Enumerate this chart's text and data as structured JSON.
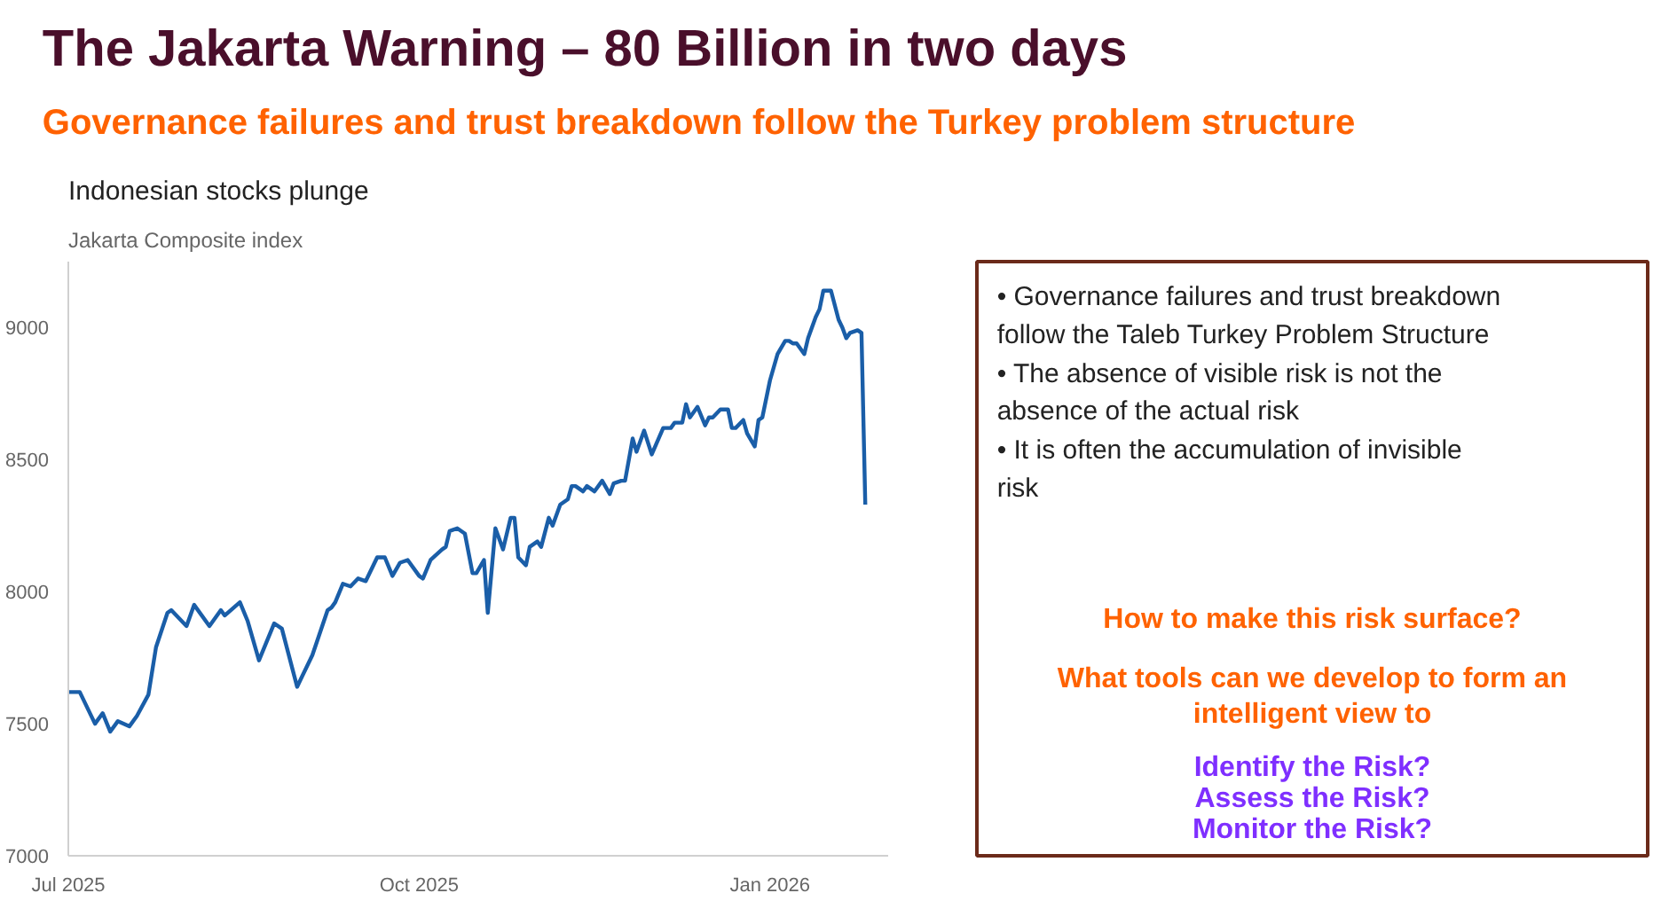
{
  "chart_data": [
    {
      "type": "other",
      "title": "The Jakarta Warning – 80 Billion in two days",
      "subtitle": "Governance failures and trust breakdown follow the Turkey problem structure"
    },
    {
      "type": "line",
      "title": "Indonesian stocks plunge",
      "subtitle": "Jakarta Composite index",
      "x": [
        "2025-07-01",
        "2025-07-04",
        "2025-07-08",
        "2025-07-10",
        "2025-07-12",
        "2025-07-14",
        "2025-07-17",
        "2025-07-19",
        "2025-07-22",
        "2025-07-24",
        "2025-07-27",
        "2025-07-28",
        "2025-08-01",
        "2025-08-03",
        "2025-08-07",
        "2025-08-10",
        "2025-08-11",
        "2025-08-15",
        "2025-08-17",
        "2025-08-20",
        "2025-08-24",
        "2025-08-26",
        "2025-08-30",
        "2025-09-03",
        "2025-09-07",
        "2025-09-08",
        "2025-09-09",
        "2025-09-11",
        "2025-09-13",
        "2025-09-15",
        "2025-09-17",
        "2025-09-20",
        "2025-09-22",
        "2025-09-24",
        "2025-09-26",
        "2025-09-28",
        "2025-10-01",
        "2025-10-02",
        "2025-10-04",
        "2025-10-07",
        "2025-10-08",
        "2025-10-09",
        "2025-10-11",
        "2025-10-13",
        "2025-10-15",
        "2025-10-16",
        "2025-10-18",
        "2025-10-19",
        "2025-10-21",
        "2025-10-23",
        "2025-10-25",
        "2025-10-26",
        "2025-10-27",
        "2025-10-29",
        "2025-10-30",
        "2025-11-01",
        "2025-11-02",
        "2025-11-04",
        "2025-11-05",
        "2025-11-07",
        "2025-11-09",
        "2025-11-10",
        "2025-11-11",
        "2025-11-13",
        "2025-11-14",
        "2025-11-16",
        "2025-11-18",
        "2025-11-20",
        "2025-11-21",
        "2025-11-23",
        "2025-11-24",
        "2025-11-26",
        "2025-11-27",
        "2025-11-29",
        "2025-12-01",
        "2025-12-04",
        "2025-12-06",
        "2025-12-07",
        "2025-12-09",
        "2025-12-10",
        "2025-12-11",
        "2025-12-13",
        "2025-12-15",
        "2025-12-16",
        "2025-12-17",
        "2025-12-19",
        "2025-12-21",
        "2025-12-22",
        "2025-12-23",
        "2025-12-25",
        "2025-12-26",
        "2025-12-28",
        "2025-12-29",
        "2025-12-30",
        "2026-01-01",
        "2026-01-03",
        "2026-01-05",
        "2026-01-06",
        "2026-01-07",
        "2026-01-08",
        "2026-01-10",
        "2026-01-11",
        "2026-01-13",
        "2026-01-14",
        "2026-01-15",
        "2026-01-17",
        "2026-01-19",
        "2026-01-20",
        "2026-01-21",
        "2026-01-22",
        "2026-01-24",
        "2026-01-25",
        "2026-01-26"
      ],
      "series": [
        {
          "color": "#1a5ea8",
          "values": [
            7620,
            7620,
            7500,
            7540,
            7470,
            7510,
            7490,
            7530,
            7610,
            7790,
            7920,
            7930,
            7870,
            7950,
            7870,
            7930,
            7910,
            7960,
            7890,
            7740,
            7880,
            7860,
            7640,
            7760,
            7930,
            7940,
            7960,
            8030,
            8020,
            8050,
            8040,
            8130,
            8130,
            8060,
            8110,
            8120,
            8060,
            8050,
            8120,
            8160,
            8170,
            8230,
            8240,
            8220,
            8070,
            8070,
            8120,
            7920,
            8240,
            8160,
            8280,
            8280,
            8130,
            8100,
            8170,
            8190,
            8170,
            8280,
            8250,
            8330,
            8350,
            8400,
            8400,
            8380,
            8400,
            8380,
            8420,
            8370,
            8410,
            8420,
            8420,
            8580,
            8530,
            8610,
            8520,
            8620,
            8620,
            8640,
            8640,
            8710,
            8660,
            8700,
            8630,
            8660,
            8660,
            8690,
            8690,
            8620,
            8620,
            8650,
            8600,
            8550,
            8650,
            8660,
            8800,
            8900,
            8950,
            8950,
            8940,
            8940,
            8900,
            8960,
            9040,
            9070,
            9140,
            9140,
            9030,
            9000,
            8960,
            8980,
            8990,
            8980,
            8330
          ]
        }
      ],
      "xlim": [
        "2025-07-01",
        "2026-02-01"
      ],
      "ylim": [
        7000,
        9250
      ],
      "xticks": [
        {
          "value": "2025-07-01",
          "label": "Jul 2025"
        },
        {
          "value": "2025-10-01",
          "label": "Oct 2025"
        },
        {
          "value": "2026-01-01",
          "label": "Jan 2026"
        }
      ],
      "yticks": [
        7000,
        7500,
        8000,
        8500,
        9000
      ]
    },
    {
      "type": "other",
      "annotations": [
        "•  Governance failures and trust breakdown follow the Taleb Turkey Problem Structure",
        "•  The absence of visible risk is not the absence of the actual risk",
        "•  It is often the accumulation of invisible risk",
        "How to make this risk surface?",
        "What tools can we develop to form an intelligent view to",
        "Identify the Risk?",
        "Assess the Risk?",
        "Monitor the Risk?"
      ]
    }
  ]
}
